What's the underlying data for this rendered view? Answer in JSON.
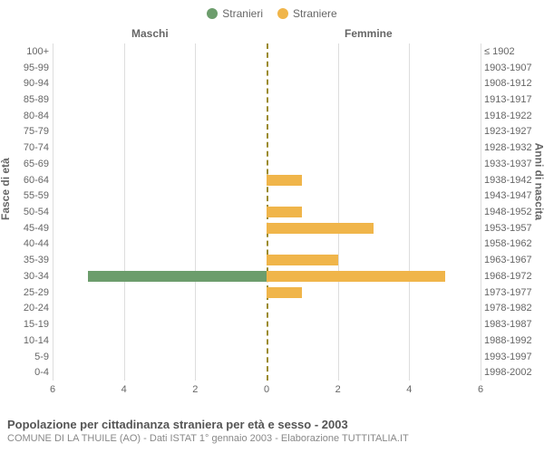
{
  "legend": {
    "m": "Stranieri",
    "f": "Straniere"
  },
  "sections": {
    "m": "Maschi",
    "f": "Femmine"
  },
  "y_title_left": "Fasce di età",
  "y_title_right": "Anni di nascita",
  "colors": {
    "m": "#6c9d6c",
    "f": "#f0b54a",
    "center_line": "#9b8b2e",
    "grid": "#dddddd",
    "text": "#666666"
  },
  "x_max": 6,
  "x_ticks": [
    6,
    4,
    2,
    0,
    2,
    4,
    6
  ],
  "age_bands": [
    {
      "age": "100+",
      "birth": "≤ 1902",
      "m": 0,
      "f": 0
    },
    {
      "age": "95-99",
      "birth": "1903-1907",
      "m": 0,
      "f": 0
    },
    {
      "age": "90-94",
      "birth": "1908-1912",
      "m": 0,
      "f": 0
    },
    {
      "age": "85-89",
      "birth": "1913-1917",
      "m": 0,
      "f": 0
    },
    {
      "age": "80-84",
      "birth": "1918-1922",
      "m": 0,
      "f": 0
    },
    {
      "age": "75-79",
      "birth": "1923-1927",
      "m": 0,
      "f": 0
    },
    {
      "age": "70-74",
      "birth": "1928-1932",
      "m": 0,
      "f": 0
    },
    {
      "age": "65-69",
      "birth": "1933-1937",
      "m": 0,
      "f": 0
    },
    {
      "age": "60-64",
      "birth": "1938-1942",
      "m": 0,
      "f": 1
    },
    {
      "age": "55-59",
      "birth": "1943-1947",
      "m": 0,
      "f": 0
    },
    {
      "age": "50-54",
      "birth": "1948-1952",
      "m": 0,
      "f": 1
    },
    {
      "age": "45-49",
      "birth": "1953-1957",
      "m": 0,
      "f": 3
    },
    {
      "age": "40-44",
      "birth": "1958-1962",
      "m": 0,
      "f": 0
    },
    {
      "age": "35-39",
      "birth": "1963-1967",
      "m": 0,
      "f": 2
    },
    {
      "age": "30-34",
      "birth": "1968-1972",
      "m": 5,
      "f": 5
    },
    {
      "age": "25-29",
      "birth": "1973-1977",
      "m": 0,
      "f": 1
    },
    {
      "age": "20-24",
      "birth": "1978-1982",
      "m": 0,
      "f": 0
    },
    {
      "age": "15-19",
      "birth": "1983-1987",
      "m": 0,
      "f": 0
    },
    {
      "age": "10-14",
      "birth": "1988-1992",
      "m": 0,
      "f": 0
    },
    {
      "age": "5-9",
      "birth": "1993-1997",
      "m": 0,
      "f": 0
    },
    {
      "age": "0-4",
      "birth": "1998-2002",
      "m": 0,
      "f": 0
    }
  ],
  "footer": {
    "title": "Popolazione per cittadinanza straniera per età e sesso - 2003",
    "sub": "COMUNE DI LA THUILE (AO) - Dati ISTAT 1° gennaio 2003 - Elaborazione TUTTITALIA.IT"
  }
}
